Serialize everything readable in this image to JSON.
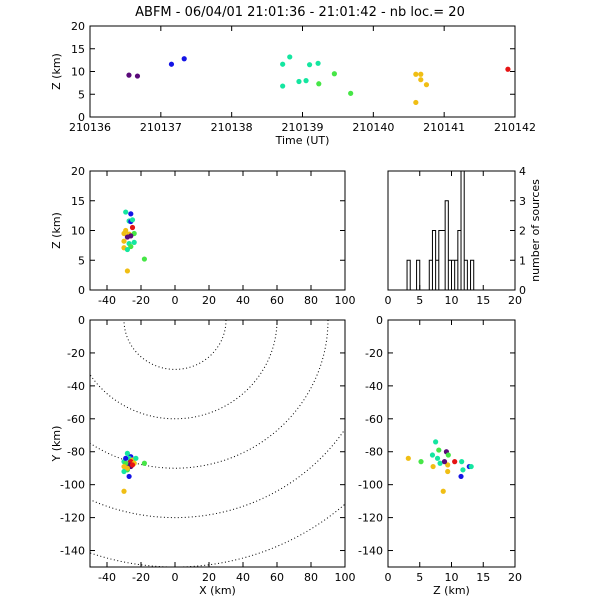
{
  "title": "ABFM - 06/04/01 21:01:36 - 21:01:42 - nb loc.=      20",
  "colors": {
    "purple": "#5a0a7a",
    "blue": "#1414e6",
    "cyan": "#14e6a0",
    "green": "#46e646",
    "yellow": "#f0be14",
    "red": "#e61414"
  },
  "chart_data": [
    {
      "id": "time-height",
      "type": "scatter",
      "xlabel": "Time (UT)",
      "ylabel": "Z (km)",
      "xlim": [
        210136,
        210142
      ],
      "ylim": [
        0,
        20
      ],
      "xticks": [
        210136,
        210137,
        210138,
        210139,
        210140,
        210141,
        210142
      ],
      "yticks": [
        0,
        5,
        10,
        15,
        20
      ],
      "points": [
        {
          "x": 210136.55,
          "y": 9.2,
          "c": "purple"
        },
        {
          "x": 210136.67,
          "y": 9.0,
          "c": "purple"
        },
        {
          "x": 210137.15,
          "y": 11.6,
          "c": "blue"
        },
        {
          "x": 210137.33,
          "y": 12.8,
          "c": "blue"
        },
        {
          "x": 210138.72,
          "y": 11.6,
          "c": "cyan"
        },
        {
          "x": 210138.82,
          "y": 13.2,
          "c": "cyan"
        },
        {
          "x": 210138.95,
          "y": 7.8,
          "c": "cyan"
        },
        {
          "x": 210139.05,
          "y": 8.0,
          "c": "cyan"
        },
        {
          "x": 210139.1,
          "y": 11.5,
          "c": "cyan"
        },
        {
          "x": 210139.22,
          "y": 11.8,
          "c": "cyan"
        },
        {
          "x": 210138.72,
          "y": 6.8,
          "c": "cyan"
        },
        {
          "x": 210139.23,
          "y": 7.3,
          "c": "green"
        },
        {
          "x": 210139.45,
          "y": 9.5,
          "c": "green"
        },
        {
          "x": 210139.68,
          "y": 5.2,
          "c": "green"
        },
        {
          "x": 210140.6,
          "y": 9.4,
          "c": "yellow"
        },
        {
          "x": 210140.67,
          "y": 9.4,
          "c": "yellow"
        },
        {
          "x": 210140.67,
          "y": 8.2,
          "c": "yellow"
        },
        {
          "x": 210140.75,
          "y": 7.1,
          "c": "yellow"
        },
        {
          "x": 210140.6,
          "y": 3.2,
          "c": "yellow"
        },
        {
          "x": 210141.9,
          "y": 10.5,
          "c": "red"
        }
      ]
    },
    {
      "id": "x-height",
      "type": "scatter",
      "xlabel": "",
      "ylabel": "Z (km)",
      "xlim": [
        -50,
        100
      ],
      "ylim": [
        0,
        20
      ],
      "xticks": [
        -40,
        -20,
        0,
        20,
        40,
        60,
        80,
        100
      ],
      "yticks": [
        0,
        5,
        10,
        15,
        20
      ],
      "points": [
        {
          "x": -29,
          "y": 13.1,
          "c": "cyan"
        },
        {
          "x": -26,
          "y": 12.8,
          "c": "blue"
        },
        {
          "x": -27,
          "y": 11.6,
          "c": "cyan"
        },
        {
          "x": -26,
          "y": 11.5,
          "c": "blue"
        },
        {
          "x": -25,
          "y": 10.5,
          "c": "red"
        },
        {
          "x": -30,
          "y": 9.5,
          "c": "yellow"
        },
        {
          "x": -27,
          "y": 9.4,
          "c": "yellow"
        },
        {
          "x": -24,
          "y": 9.5,
          "c": "green"
        },
        {
          "x": -26,
          "y": 9.1,
          "c": "purple"
        },
        {
          "x": -28,
          "y": 8.9,
          "c": "purple"
        },
        {
          "x": -30,
          "y": 8.2,
          "c": "yellow"
        },
        {
          "x": -24,
          "y": 8.0,
          "c": "cyan"
        },
        {
          "x": -27,
          "y": 7.8,
          "c": "cyan"
        },
        {
          "x": -26,
          "y": 7.3,
          "c": "green"
        },
        {
          "x": -30,
          "y": 7.1,
          "c": "yellow"
        },
        {
          "x": -28,
          "y": 6.8,
          "c": "cyan"
        },
        {
          "x": -18,
          "y": 5.2,
          "c": "green"
        },
        {
          "x": -28,
          "y": 3.2,
          "c": "yellow"
        },
        {
          "x": -25,
          "y": 11.8,
          "c": "cyan"
        },
        {
          "x": -29,
          "y": 10.0,
          "c": "yellow"
        }
      ]
    },
    {
      "id": "height-histogram",
      "type": "bar",
      "xlabel": "",
      "ylabel": "number of sources",
      "xlim": [
        0,
        20
      ],
      "ylim": [
        0,
        4
      ],
      "xticks": [
        0,
        5,
        10,
        15,
        20
      ],
      "yticks": [
        0,
        1,
        2,
        3,
        4
      ],
      "bins": [
        {
          "x0": 3.0,
          "x1": 3.5,
          "v": 1
        },
        {
          "x0": 3.5,
          "x1": 4.5,
          "v": 0
        },
        {
          "x0": 4.5,
          "x1": 5.0,
          "v": 1
        },
        {
          "x0": 5.0,
          "x1": 6.5,
          "v": 0
        },
        {
          "x0": 6.5,
          "x1": 7.0,
          "v": 1
        },
        {
          "x0": 7.0,
          "x1": 7.5,
          "v": 2
        },
        {
          "x0": 7.5,
          "x1": 8.0,
          "v": 1
        },
        {
          "x0": 8.0,
          "x1": 9.0,
          "v": 2
        },
        {
          "x0": 9.0,
          "x1": 9.5,
          "v": 3
        },
        {
          "x0": 9.5,
          "x1": 10.0,
          "v": 1
        },
        {
          "x0": 10.0,
          "x1": 10.5,
          "v": 1
        },
        {
          "x0": 10.5,
          "x1": 11.0,
          "v": 1
        },
        {
          "x0": 11.0,
          "x1": 11.5,
          "v": 2
        },
        {
          "x0": 11.5,
          "x1": 12.0,
          "v": 4
        },
        {
          "x0": 12.0,
          "x1": 12.5,
          "v": 1
        },
        {
          "x0": 12.5,
          "x1": 13.0,
          "v": 0
        },
        {
          "x0": 13.0,
          "x1": 13.5,
          "v": 1
        }
      ]
    },
    {
      "id": "plan-view",
      "type": "scatter",
      "xlabel": "X (km)",
      "ylabel": "Y (km)",
      "xlim": [
        -50,
        100
      ],
      "ylim": [
        -150,
        0
      ],
      "xticks": [
        -40,
        -20,
        0,
        20,
        40,
        60,
        80,
        100
      ],
      "yticks": [
        -140,
        -120,
        -100,
        -80,
        -60,
        -40,
        -20,
        0
      ],
      "range_rings_km": [
        30,
        60,
        90,
        120,
        150
      ],
      "ring_center": [
        0,
        0
      ],
      "points": [
        {
          "x": -28,
          "y": -81,
          "c": "cyan"
        },
        {
          "x": -26,
          "y": -83,
          "c": "blue"
        },
        {
          "x": -27,
          "y": -84,
          "c": "cyan"
        },
        {
          "x": -25,
          "y": -85,
          "c": "yellow"
        },
        {
          "x": -30,
          "y": -86,
          "c": "cyan"
        },
        {
          "x": -26,
          "y": -86,
          "c": "red"
        },
        {
          "x": -24,
          "y": -87,
          "c": "yellow"
        },
        {
          "x": -27,
          "y": -88,
          "c": "purple"
        },
        {
          "x": -29,
          "y": -87,
          "c": "green"
        },
        {
          "x": -18,
          "y": -87,
          "c": "green"
        },
        {
          "x": -30,
          "y": -89,
          "c": "yellow"
        },
        {
          "x": -26,
          "y": -89,
          "c": "purple"
        },
        {
          "x": -28,
          "y": -91,
          "c": "green"
        },
        {
          "x": -30,
          "y": -92,
          "c": "cyan"
        },
        {
          "x": -27,
          "y": -95,
          "c": "blue"
        },
        {
          "x": -30,
          "y": -104,
          "c": "yellow"
        },
        {
          "x": -25,
          "y": -88,
          "c": "red"
        },
        {
          "x": -23,
          "y": -84,
          "c": "cyan"
        },
        {
          "x": -29,
          "y": -84,
          "c": "blue"
        },
        {
          "x": -28,
          "y": -90,
          "c": "yellow"
        }
      ]
    },
    {
      "id": "z-y-view",
      "type": "scatter",
      "xlabel": "Z (km)",
      "ylabel": "",
      "xlim": [
        0,
        20
      ],
      "ylim": [
        -150,
        0
      ],
      "xticks": [
        0,
        5,
        10,
        15,
        20
      ],
      "yticks": [
        -140,
        -120,
        -100,
        -80,
        -60,
        -40,
        -20,
        0
      ],
      "points": [
        {
          "x": 7.5,
          "y": -74,
          "c": "cyan"
        },
        {
          "x": 8.0,
          "y": -79,
          "c": "green"
        },
        {
          "x": 9.2,
          "y": -80,
          "c": "purple"
        },
        {
          "x": 9.5,
          "y": -82,
          "c": "green"
        },
        {
          "x": 7.0,
          "y": -82,
          "c": "cyan"
        },
        {
          "x": 3.2,
          "y": -84,
          "c": "yellow"
        },
        {
          "x": 7.8,
          "y": -84,
          "c": "cyan"
        },
        {
          "x": 5.2,
          "y": -86,
          "c": "green"
        },
        {
          "x": 10.5,
          "y": -86,
          "c": "red"
        },
        {
          "x": 11.6,
          "y": -86,
          "c": "cyan"
        },
        {
          "x": 8.2,
          "y": -87,
          "c": "cyan"
        },
        {
          "x": 9.4,
          "y": -88,
          "c": "yellow"
        },
        {
          "x": 12.8,
          "y": -89,
          "c": "blue"
        },
        {
          "x": 13.1,
          "y": -89,
          "c": "cyan"
        },
        {
          "x": 7.1,
          "y": -89,
          "c": "yellow"
        },
        {
          "x": 11.8,
          "y": -91,
          "c": "cyan"
        },
        {
          "x": 9.4,
          "y": -92,
          "c": "yellow"
        },
        {
          "x": 11.5,
          "y": -95,
          "c": "blue"
        },
        {
          "x": 8.9,
          "y": -86,
          "c": "purple"
        },
        {
          "x": 8.7,
          "y": -104,
          "c": "yellow"
        }
      ]
    }
  ]
}
